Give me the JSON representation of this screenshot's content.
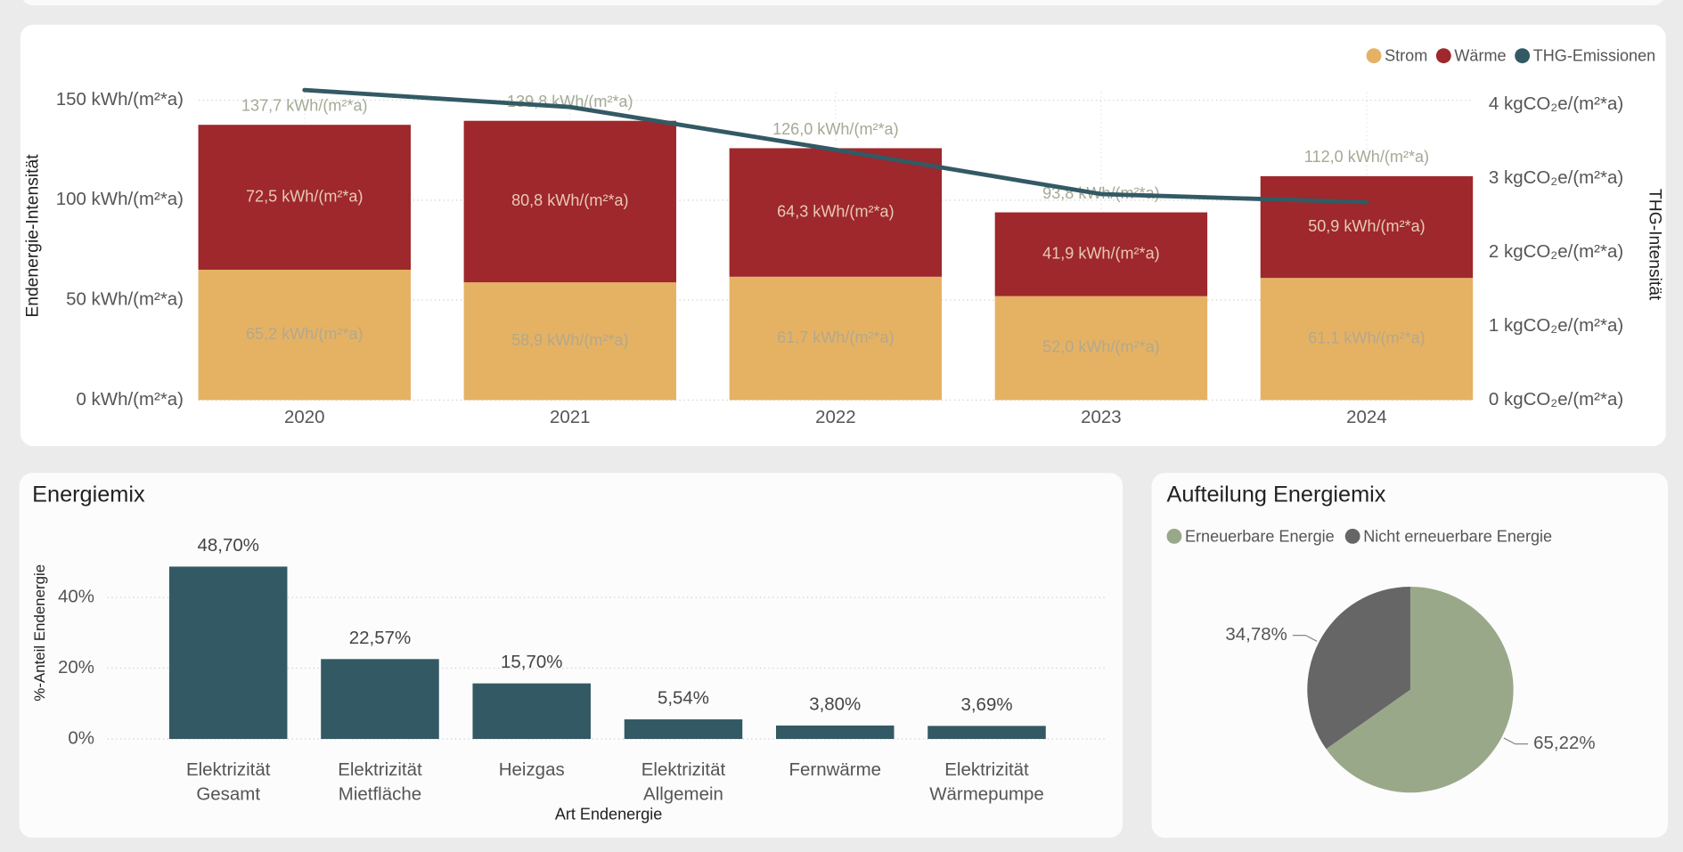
{
  "chart_data": [
    {
      "type": "bar",
      "stacked": true,
      "categories": [
        "2020",
        "2021",
        "2022",
        "2023",
        "2024"
      ],
      "series": [
        {
          "name": "Strom",
          "color": "#e5b264",
          "values": [
            65.2,
            58.9,
            61.7,
            52.0,
            61.1
          ],
          "value_labels": [
            "65,2 kWh/(m²*a)",
            "58,9 kWh/(m²*a)",
            "61,7 kWh/(m²*a)",
            "52,0 kWh/(m²*a)",
            "61,1 kWh/(m²*a)"
          ]
        },
        {
          "name": "Wärme",
          "color": "#9e282c",
          "values": [
            72.5,
            80.8,
            64.3,
            41.9,
            50.9
          ],
          "value_labels": [
            "72,5 kWh/(m²*a)",
            "80,8 kWh/(m²*a)",
            "64,3 kWh/(m²*a)",
            "41,9 kWh/(m²*a)",
            "50,9 kWh/(m²*a)"
          ]
        },
        {
          "name": "THG-Emissionen",
          "type": "line",
          "axis": "y2",
          "color": "#335a64",
          "values": [
            4.2,
            3.97,
            3.39,
            2.79,
            2.68
          ]
        }
      ],
      "totals": [
        137.7,
        139.8,
        126.0,
        93.8,
        112.0
      ],
      "total_labels": [
        "137,7 kWh/(m²*a)",
        "139,8 kWh/(m²*a)",
        "126,0 kWh/(m²*a)",
        "93,8 kWh/(m²*a)",
        "112,0 kWh/(m²*a)"
      ],
      "y_label": "Endenergie-Intensität",
      "y2_label": "THG-Intensität",
      "ylim": [
        0,
        154
      ],
      "yticks": [
        {
          "value": 0,
          "label": "0 kWh/(m²*a)"
        },
        {
          "value": 50,
          "label": "50 kWh/(m²*a)"
        },
        {
          "value": 100,
          "label": "100 kWh/(m²*a)"
        },
        {
          "value": 150,
          "label": "150 kWh/(m²*a)"
        }
      ],
      "y2lim": [
        0,
        4.17
      ],
      "y2ticks": [
        {
          "value": 0,
          "label": "0 kgCO₂e/(m²*a)"
        },
        {
          "value": 1,
          "label": "1 kgCO₂e/(m²*a)"
        },
        {
          "value": 2,
          "label": "2 kgCO₂e/(m²*a)"
        },
        {
          "value": 3,
          "label": "3 kgCO₂e/(m²*a)"
        },
        {
          "value": 4,
          "label": "4 kgCO₂e/(m²*a)"
        }
      ],
      "grid": true,
      "legend": "top-right"
    },
    {
      "type": "bar",
      "title": "Energiemix",
      "categories": [
        "Elektrizität Gesamt",
        "Elektrizität Mietfläche",
        "Heizgas",
        "Elektrizität Allgemein",
        "Fernwärme",
        "Elektrizität Wärmepumpe"
      ],
      "values": [
        48.7,
        22.57,
        15.7,
        5.54,
        3.8,
        3.69
      ],
      "value_labels": [
        "48,70%",
        "22,57%",
        "15,70%",
        "5,54%",
        "3,80%",
        "3,69%"
      ],
      "color": "#335a64",
      "x_label": "Art Endenergie",
      "y_label": "%-Anteil Endenergie",
      "ylim": [
        0,
        50
      ],
      "yticks": [
        {
          "value": 0,
          "label": "0%"
        },
        {
          "value": 20,
          "label": "20%"
        },
        {
          "value": 40,
          "label": "40%"
        }
      ],
      "grid": true
    },
    {
      "type": "pie",
      "title": "Aufteilung Energiemix",
      "categories": [
        "Erneuerbare Energie",
        "Nicht erneuerbare Energie"
      ],
      "values": [
        65.22,
        34.78
      ],
      "value_labels": [
        "65,22%",
        "34,78%"
      ],
      "colors": [
        "#9aa88a",
        "#666666"
      ],
      "legend": "top-left"
    }
  ]
}
